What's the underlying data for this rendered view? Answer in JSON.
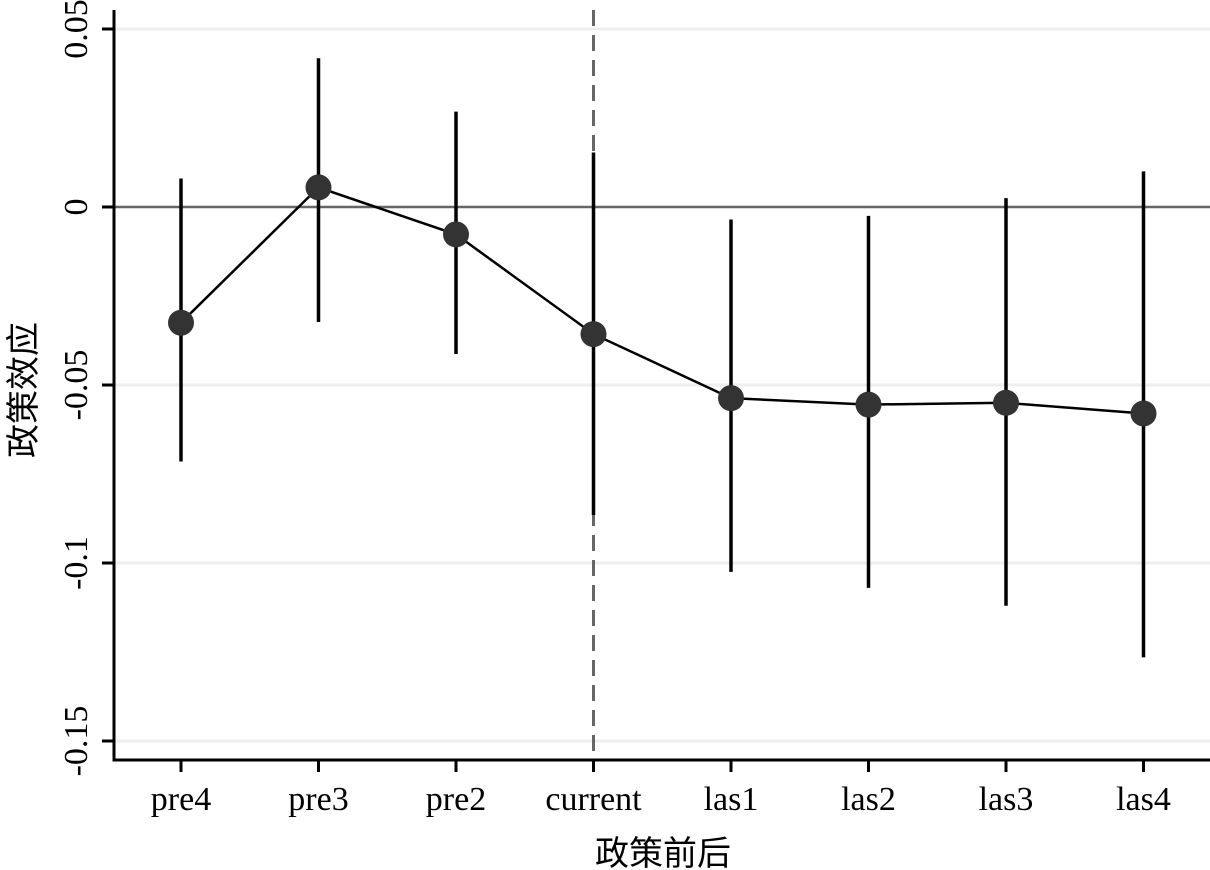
{
  "chart_data": {
    "type": "scatter",
    "title": "",
    "xlabel": "政策前后",
    "ylabel": "政策效应",
    "categories": [
      "pre4",
      "pre3",
      "pre2",
      "current",
      "las1",
      "las2",
      "las3",
      "las4"
    ],
    "series": [
      {
        "values": [
          -0.0325,
          0.0055,
          -0.0077,
          -0.0357,
          -0.0537,
          -0.0555,
          -0.055,
          -0.058
        ],
        "ci_upper": [
          0.008,
          0.0418,
          0.0268,
          0.0153,
          -0.0035,
          -0.0025,
          0.0025,
          0.01
        ],
        "ci_lower": [
          -0.0715,
          -0.0323,
          -0.0413,
          -0.0865,
          -0.1025,
          -0.107,
          -0.112,
          -0.1265
        ]
      }
    ],
    "yticks": [
      0.05,
      0,
      -0.05,
      -0.1,
      -0.15
    ],
    "ytick_labels": [
      "0.05",
      "0",
      "-0.05",
      "-0.1",
      "-0.15"
    ],
    "ylim": [
      -0.155,
      0.056
    ],
    "reference_line_y": 0,
    "vertical_marker_category": "current",
    "grid": true,
    "colors": {
      "point": "#333333",
      "line": "#000000",
      "error_bar": "#000000",
      "zero_line": "#666666",
      "marker_line": "#666666",
      "grid": "#eeeeee"
    }
  }
}
